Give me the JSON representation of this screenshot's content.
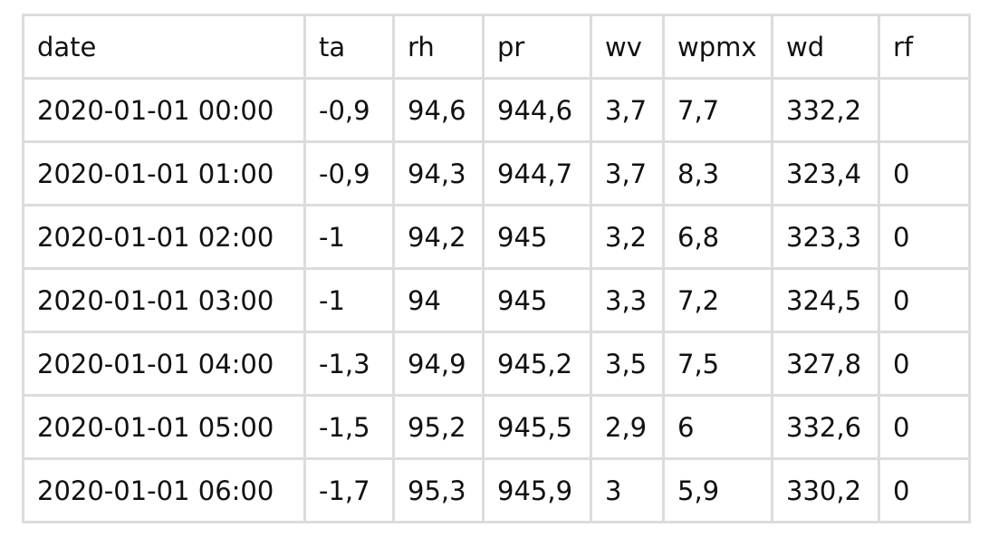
{
  "table": {
    "columns": [
      "date",
      "ta",
      "rh",
      "pr",
      "wv",
      "wpmx",
      "wd",
      "rf"
    ],
    "rows": [
      [
        "2020-01-01 00:00",
        "-0,9",
        "94,6",
        "944,6",
        "3,7",
        "7,7",
        "332,2",
        ""
      ],
      [
        "2020-01-01 01:00",
        "-0,9",
        "94,3",
        "944,7",
        "3,7",
        "8,3",
        "323,4",
        "0"
      ],
      [
        "2020-01-01 02:00",
        "-1",
        "94,2",
        "945",
        "3,2",
        "6,8",
        "323,3",
        "0"
      ],
      [
        "2020-01-01 03:00",
        "-1",
        "94",
        "945",
        "3,3",
        "7,2",
        "324,5",
        "0"
      ],
      [
        "2020-01-01 04:00",
        "-1,3",
        "94,9",
        "945,2",
        "3,5",
        "7,5",
        "327,8",
        "0"
      ],
      [
        "2020-01-01 05:00",
        "-1,5",
        "95,2",
        "945,5",
        "2,9",
        "6",
        "332,6",
        "0"
      ],
      [
        "2020-01-01 06:00",
        "-1,7",
        "95,3",
        "945,9",
        "3",
        "5,9",
        "330,2",
        "0"
      ]
    ]
  }
}
